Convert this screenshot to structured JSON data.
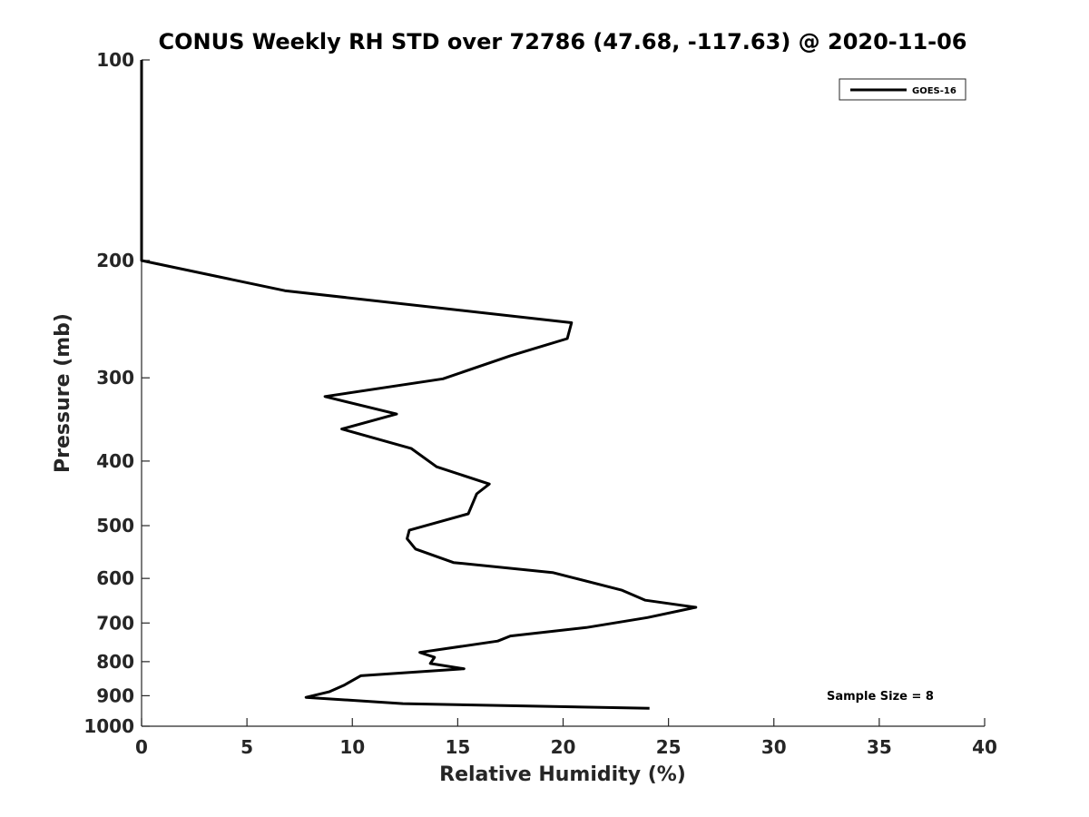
{
  "chart_data": {
    "type": "line",
    "title": "CONUS Weekly RH STD over 72786 (47.68, -117.63) @ 2020-11-06",
    "xlabel": "Relative Humidity (%)",
    "ylabel": "Pressure (mb)",
    "xlim": [
      0,
      40
    ],
    "ylim": [
      100,
      1000
    ],
    "y_scale": "log",
    "y_reversed": true,
    "x_ticks": [
      0,
      5,
      10,
      15,
      20,
      25,
      30,
      35,
      40
    ],
    "y_ticks": [
      100,
      200,
      300,
      400,
      500,
      600,
      700,
      800,
      900,
      1000
    ],
    "grid": false,
    "legend_position": "top-right",
    "annotation": "Sample Size = 8",
    "series": [
      {
        "name": "GOES-16",
        "color": "#000000",
        "points": [
          [
            0,
            100
          ],
          [
            0,
            125
          ],
          [
            0,
            150
          ],
          [
            0,
            175
          ],
          [
            0,
            200
          ],
          [
            6.8,
            222
          ],
          [
            20.4,
            248
          ],
          [
            20.2,
            262
          ],
          [
            17.5,
            278
          ],
          [
            14.3,
            301
          ],
          [
            8.7,
            320
          ],
          [
            12.1,
            340
          ],
          [
            9.5,
            358
          ],
          [
            12.8,
            383
          ],
          [
            14.0,
            408
          ],
          [
            16.5,
            433
          ],
          [
            15.9,
            448
          ],
          [
            15.5,
            480
          ],
          [
            12.7,
            508
          ],
          [
            12.6,
            523
          ],
          [
            13.0,
            542
          ],
          [
            14.8,
            568
          ],
          [
            19.5,
            588
          ],
          [
            22.8,
            625
          ],
          [
            23.9,
            647
          ],
          [
            26.3,
            663
          ],
          [
            24.0,
            687
          ],
          [
            21.1,
            711
          ],
          [
            17.5,
            732
          ],
          [
            16.9,
            745
          ],
          [
            13.2,
            775
          ],
          [
            13.9,
            788
          ],
          [
            13.7,
            805
          ],
          [
            15.3,
            820
          ],
          [
            10.4,
            840
          ],
          [
            9.6,
            868
          ],
          [
            8.9,
            888
          ],
          [
            7.8,
            905
          ],
          [
            12.4,
            925
          ],
          [
            24.1,
            940
          ]
        ]
      }
    ]
  }
}
